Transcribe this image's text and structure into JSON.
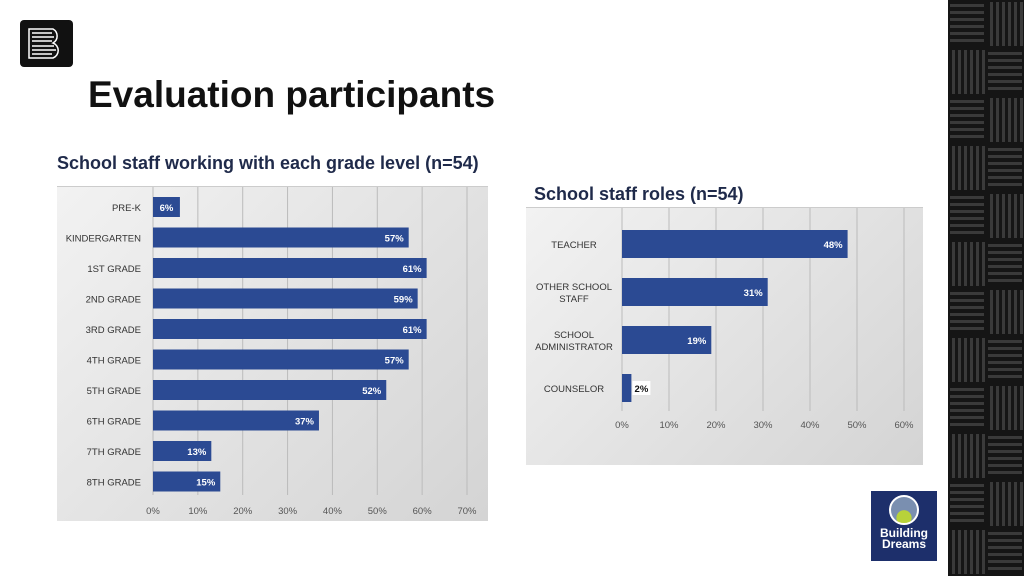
{
  "title": "Evaluation participants",
  "logo_text": "Building Dreams",
  "chart_data": [
    {
      "type": "bar",
      "orientation": "horizontal",
      "title": "School staff working with each grade level (n=54)",
      "categories": [
        "PRE-K",
        "KINDERGARTEN",
        "1ST GRADE",
        "2ND GRADE",
        "3RD GRADE",
        "4TH GRADE",
        "5TH GRADE",
        "6TH GRADE",
        "7TH GRADE",
        "8TH GRADE"
      ],
      "values": [
        6,
        57,
        61,
        59,
        61,
        57,
        52,
        37,
        13,
        15
      ],
      "labels": [
        "6%",
        "57%",
        "61%",
        "59%",
        "61%",
        "57%",
        "52%",
        "37%",
        "13%",
        "15%"
      ],
      "xlim": [
        0,
        70
      ],
      "ticks": [
        "0%",
        "10%",
        "20%",
        "30%",
        "40%",
        "50%",
        "60%",
        "70%"
      ],
      "grid": true,
      "color": "#2b4a93"
    },
    {
      "type": "bar",
      "orientation": "horizontal",
      "title": "School staff roles (n=54)",
      "categories": [
        [
          "TEACHER"
        ],
        [
          "OTHER SCHOOL",
          "STAFF"
        ],
        [
          "SCHOOL",
          "ADMINISTRATOR"
        ],
        [
          "COUNSELOR"
        ]
      ],
      "values": [
        48,
        31,
        19,
        2
      ],
      "labels": [
        "48%",
        "31%",
        "19%",
        "2%"
      ],
      "xlim": [
        0,
        60
      ],
      "ticks": [
        "0%",
        "10%",
        "20%",
        "30%",
        "40%",
        "50%",
        "60%"
      ],
      "grid": true,
      "color": "#2b4a93"
    }
  ]
}
